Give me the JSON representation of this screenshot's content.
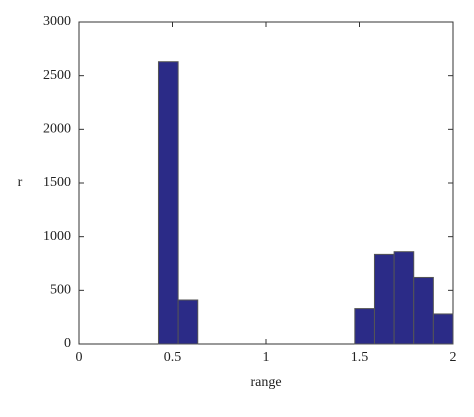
{
  "chart_data": {
    "type": "histogram",
    "x_label": "range",
    "y_label": "r",
    "bins": [
      0.425,
      0.53,
      0.635,
      0.74,
      0.845,
      0.95,
      1.055,
      1.16,
      1.265,
      1.37,
      1.475,
      1.58,
      1.685,
      1.79,
      1.895,
      2.0
    ],
    "counts": [
      2630,
      410,
      0,
      0,
      0,
      0,
      0,
      0,
      0,
      0,
      330,
      835,
      860,
      620,
      280
    ],
    "color": "#2b2b87",
    "edge_color": "#555555",
    "xlim": [
      0,
      2
    ],
    "xticks": [
      0,
      0.5,
      1,
      1.5,
      2
    ],
    "ylim": [
      0,
      3000
    ],
    "yticks": [
      0,
      500,
      1000,
      1500,
      2000,
      2500,
      3000
    ]
  }
}
